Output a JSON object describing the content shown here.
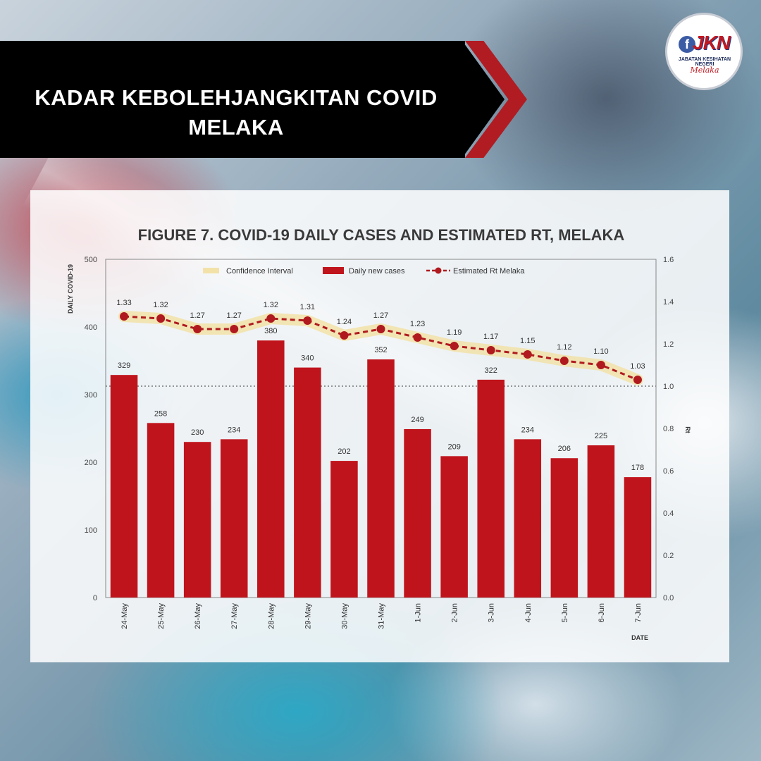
{
  "header": {
    "title": "KADAR KEBOLEHJANGKITAN COVID MELAKA"
  },
  "logo": {
    "letter": "f",
    "name": "JKN",
    "subtitle": "JABATAN KESIHATAN NEGERI",
    "script": "Melaka"
  },
  "colors": {
    "bar": "#c0141c",
    "rt_line": "#b01a1f",
    "confidence": "#f2e2a8",
    "banner": "#000000",
    "banner_accent": "#b01c22"
  },
  "chart_data": {
    "type": "bar",
    "title": "FIGURE 7. COVID-19 DAILY CASES AND ESTIMATED RT, MELAKA",
    "xlabel": "DATE",
    "ylabel": "DAILY COVID-19",
    "y2label": "Rt",
    "ylim": [
      0,
      500
    ],
    "y2lim": [
      0,
      1.6
    ],
    "yticks": [
      "0",
      "100",
      "200",
      "300",
      "400",
      "500"
    ],
    "y2ticks": [
      "0.0",
      "0.2",
      "0.4",
      "0.6",
      "0.8",
      "1.0",
      "1.2",
      "1.4",
      "1.6"
    ],
    "reference_line_rt": 1.0,
    "grid": false,
    "legend_position": "top",
    "legend": [
      "Confidence Interval",
      "Daily new cases",
      "Estimated Rt Melaka"
    ],
    "categories": [
      "24-May",
      "25-May",
      "26-May",
      "27-May",
      "28-May",
      "29-May",
      "30-May",
      "31-May",
      "1-Jun",
      "2-Jun",
      "3-Jun",
      "4-Jun",
      "5-Jun",
      "6-Jun",
      "7-Jun"
    ],
    "series": [
      {
        "name": "Daily new cases",
        "type": "bar",
        "values": [
          329,
          258,
          230,
          234,
          380,
          340,
          202,
          352,
          249,
          209,
          322,
          234,
          206,
          225,
          178
        ]
      },
      {
        "name": "Estimated Rt Melaka",
        "type": "line",
        "axis": "right",
        "values": [
          1.33,
          1.32,
          1.27,
          1.27,
          1.32,
          1.31,
          1.24,
          1.27,
          1.23,
          1.19,
          1.17,
          1.15,
          1.12,
          1.1,
          1.03
        ],
        "labels": [
          "1.33",
          "1.32",
          "1.27",
          "1.27",
          "1.32",
          "1.31",
          "1.24",
          "1.27",
          "1.23",
          "1.19",
          "1.17",
          "1.15",
          "1.12",
          "1.10",
          "1.03"
        ]
      }
    ]
  }
}
